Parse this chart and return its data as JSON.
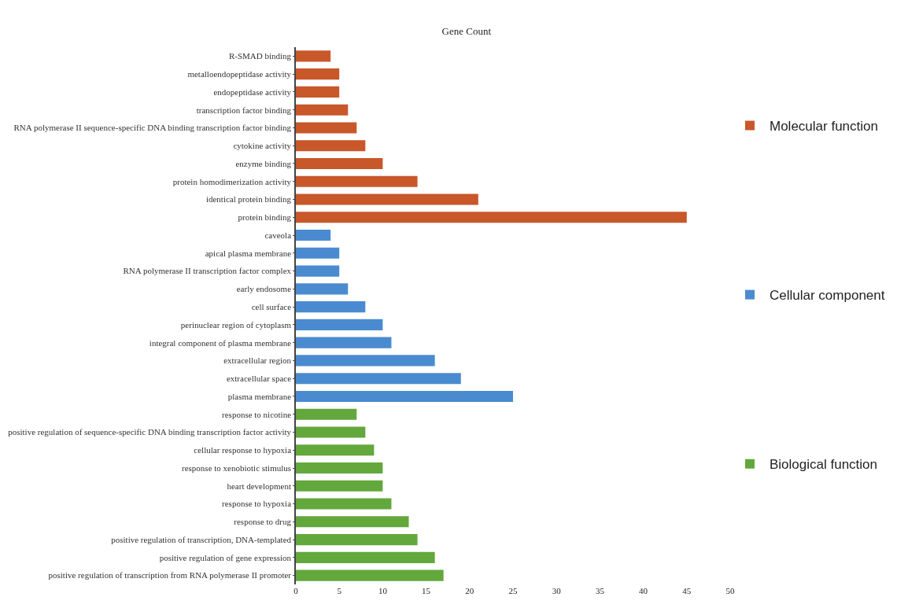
{
  "chart_data": {
    "type": "bar",
    "orientation": "horizontal",
    "title": "Gene Count",
    "categories": [
      "R-SMAD binding",
      "metalloendopeptidase activity",
      "endopeptidase activity",
      "transcription factor binding",
      "RNA polymerase II sequence-specific DNA binding transcription factor binding",
      "cytokine activity",
      "enzyme binding",
      "protein homodimerization activity",
      "identical protein binding",
      "protein binding",
      "caveola",
      "apical plasma membrane",
      "RNA polymerase II transcription factor complex",
      "early endosome",
      "cell surface",
      "perinuclear region of cytoplasm",
      "integral component of plasma membrane",
      "extracellular region",
      "extracellular space",
      "plasma membrane",
      "response to nicotine",
      "positive regulation of sequence-specific DNA binding transcription factor activity",
      "cellular response to hypoxia",
      "response to xenobiotic stimulus",
      "heart development",
      "response to hypoxia",
      "response to drug",
      "positive regulation of transcription, DNA-templated",
      "positive regulation of gene expression",
      "positive regulation of transcription from RNA polymerase II promoter"
    ],
    "series": [
      {
        "name": "Molecular function",
        "color": "#c8572a",
        "values": [
          4,
          5,
          5,
          6,
          7,
          8,
          10,
          14,
          21,
          45,
          null,
          null,
          null,
          null,
          null,
          null,
          null,
          null,
          null,
          null,
          null,
          null,
          null,
          null,
          null,
          null,
          null,
          null,
          null,
          null
        ]
      },
      {
        "name": "Cellular component",
        "color": "#4a8bd0",
        "values": [
          null,
          null,
          null,
          null,
          null,
          null,
          null,
          null,
          null,
          null,
          4,
          5,
          5,
          6,
          8,
          10,
          11,
          16,
          19,
          25,
          null,
          null,
          null,
          null,
          null,
          null,
          null,
          null,
          null,
          null
        ]
      },
      {
        "name": "Biological function",
        "color": "#62a83c",
        "values": [
          null,
          null,
          null,
          null,
          null,
          null,
          null,
          null,
          null,
          null,
          null,
          null,
          null,
          null,
          null,
          null,
          null,
          null,
          null,
          null,
          7,
          8,
          9,
          10,
          10,
          11,
          13,
          14,
          16,
          17
        ]
      }
    ],
    "xlim": [
      0,
      50
    ],
    "xticks": [
      0,
      5,
      10,
      15,
      20,
      25,
      30,
      35,
      40,
      45,
      50
    ],
    "grid": false,
    "legend": "right"
  }
}
